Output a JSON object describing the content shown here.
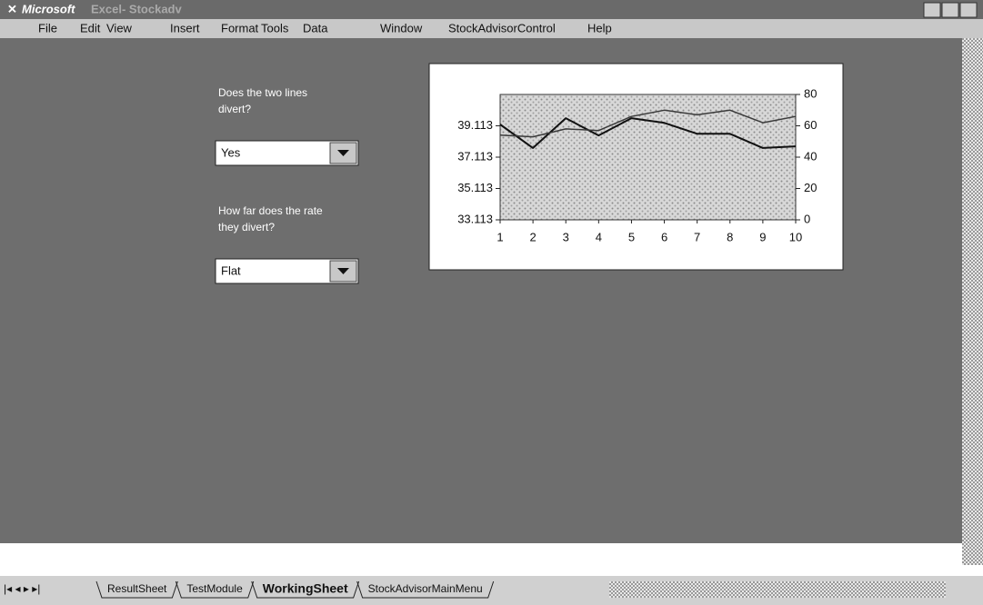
{
  "window": {
    "app": "Microsoft",
    "title": "Excel- Stockadv"
  },
  "menu": [
    "File",
    "Edit",
    "View",
    "Insert",
    "Format",
    "Tools",
    "Data",
    "Window",
    "StockAdvisorControl",
    "Help"
  ],
  "controls": [
    {
      "question": [
        "Does the two lines",
        "divert?"
      ],
      "selected": "Yes"
    },
    {
      "question": [
        "How far does the rate",
        "they divert?"
      ],
      "selected": "Flat"
    }
  ],
  "sheet_tabs": [
    "ResultSheet",
    "TestModule",
    "WorkingSheet",
    "StockAdvisorMainMenu"
  ],
  "active_tab": 2,
  "chart_data": {
    "type": "line",
    "x": [
      1,
      2,
      3,
      4,
      5,
      6,
      7,
      8,
      9,
      10
    ],
    "xlim": [
      1,
      10
    ],
    "xticks": [
      1,
      2,
      3,
      4,
      5,
      6,
      7,
      8,
      9,
      10
    ],
    "ylim": [
      33.113,
      41.113
    ],
    "yticks": [
      33.113,
      35.113,
      37.113,
      39.113
    ],
    "y2lim": [
      0,
      80
    ],
    "y2ticks": [
      0,
      20,
      40,
      60,
      80
    ],
    "series": [
      {
        "color": "#111111",
        "values": [
          39.2,
          37.7,
          39.6,
          38.5,
          39.6,
          39.3,
          38.6,
          38.6,
          37.7,
          37.8
        ]
      },
      {
        "color": "#3a3a3a",
        "axis": "y2",
        "values": [
          54,
          53,
          58,
          57,
          66,
          70,
          67,
          70,
          62,
          66
        ]
      }
    ]
  }
}
